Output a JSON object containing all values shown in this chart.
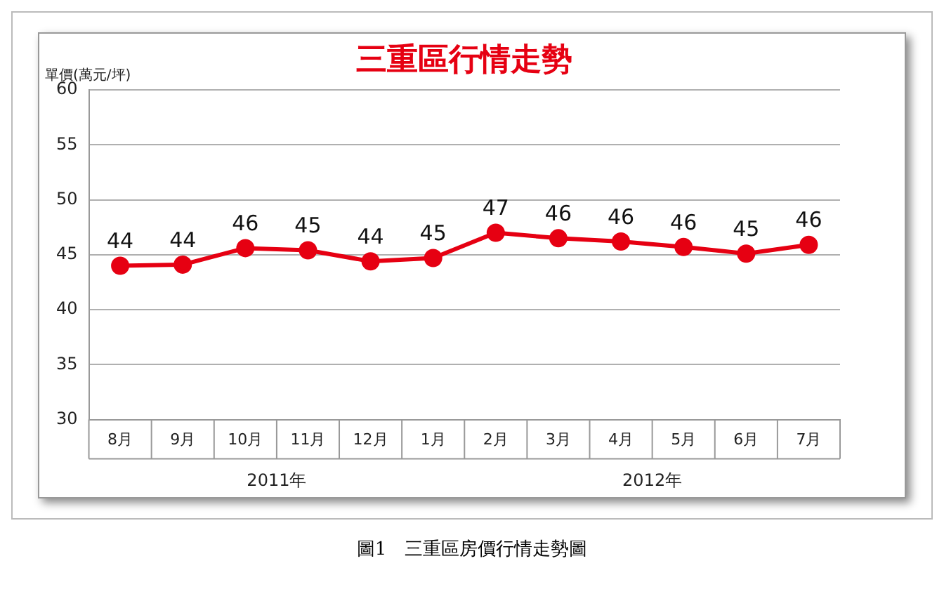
{
  "chart_data": {
    "type": "line",
    "title": "三重區行情走勢",
    "ylabel": "單價(萬元/坪)",
    "categories": [
      "8月",
      "9月",
      "10月",
      "11月",
      "12月",
      "1月",
      "2月",
      "3月",
      "4月",
      "5月",
      "6月",
      "7月"
    ],
    "series": [
      {
        "color": "#e60012",
        "values": [
          44.0,
          44.1,
          45.6,
          45.4,
          44.4,
          44.7,
          47.0,
          46.5,
          46.2,
          45.7,
          45.1,
          45.9
        ],
        "value_labels": [
          "44",
          "44",
          "46",
          "45",
          "44",
          "45",
          "47",
          "46",
          "46",
          "46",
          "45",
          "46"
        ]
      }
    ],
    "ylim": [
      30,
      60
    ],
    "yticks": [
      30,
      35,
      40,
      45,
      50,
      55,
      60
    ],
    "grid": "y",
    "legend": false,
    "marker": "circle",
    "line_style": "solid",
    "annotations": [
      "2011年",
      "2012年",
      "圖1　三重區房價行情走勢圖"
    ]
  }
}
